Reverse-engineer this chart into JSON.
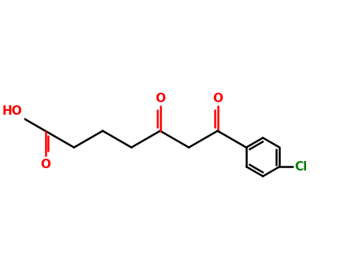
{
  "background_color": "#ffffff",
  "bond_color": "#000000",
  "O_color": "#ff0000",
  "Cl_color": "#008000",
  "bond_lw": 1.8,
  "figsize": [
    4.55,
    3.5
  ],
  "dpi": 100,
  "xlim": [
    -1.5,
    8.5
  ],
  "ylim": [
    -2.2,
    2.8
  ]
}
